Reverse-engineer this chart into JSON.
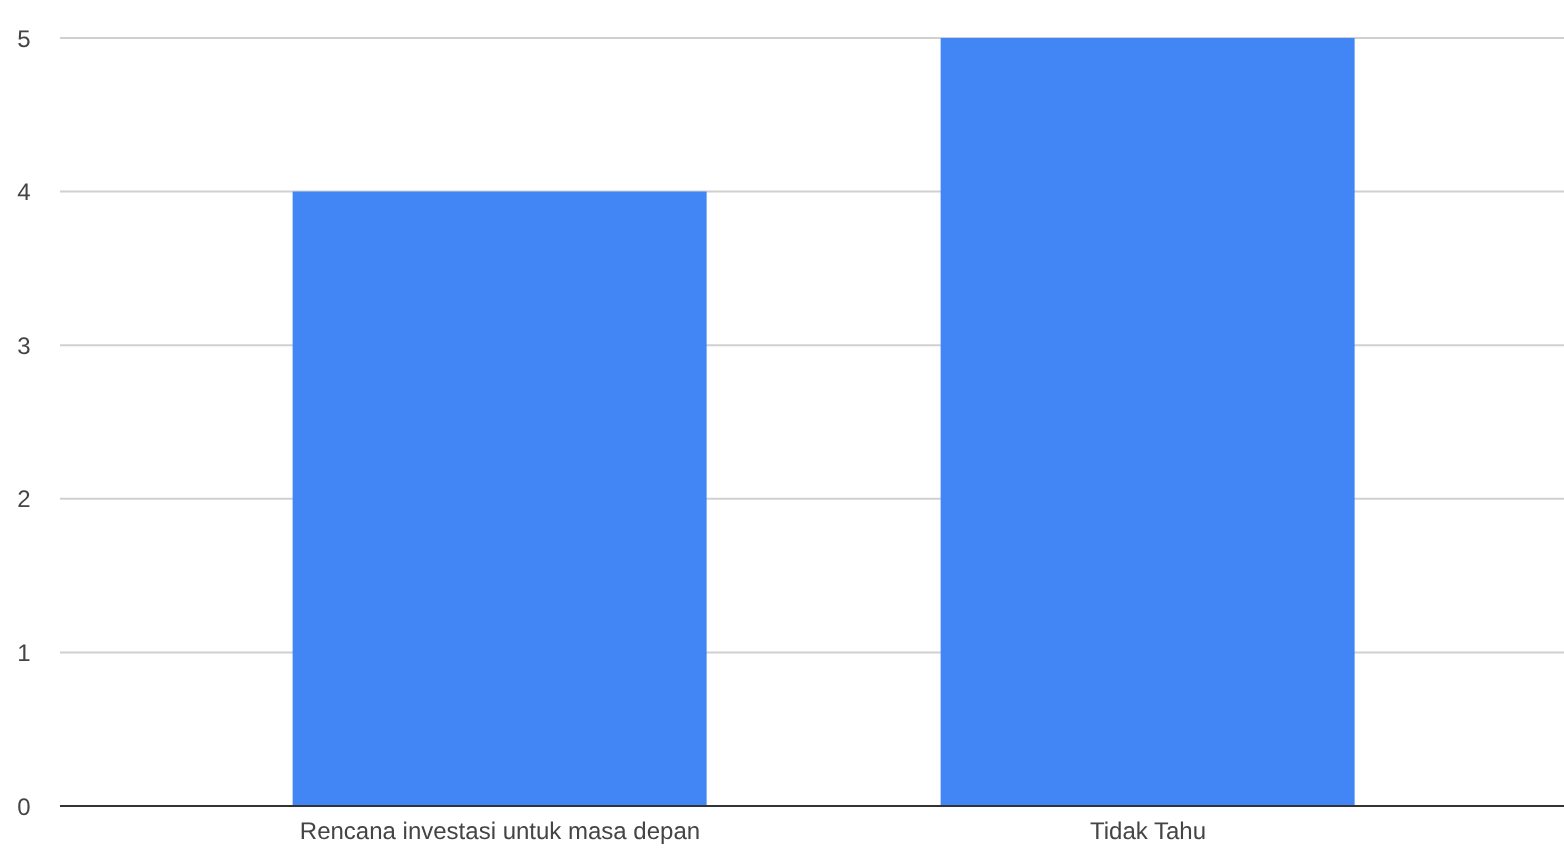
{
  "chart_data": {
    "type": "bar",
    "categories": [
      "Rencana investasi untuk masa depan",
      "Tidak Tahu"
    ],
    "values": [
      4,
      5
    ],
    "color": "#4285f4",
    "ylim": [
      0,
      5
    ],
    "yticks": [
      0,
      1,
      2,
      3,
      4,
      5
    ],
    "grid": "y"
  }
}
